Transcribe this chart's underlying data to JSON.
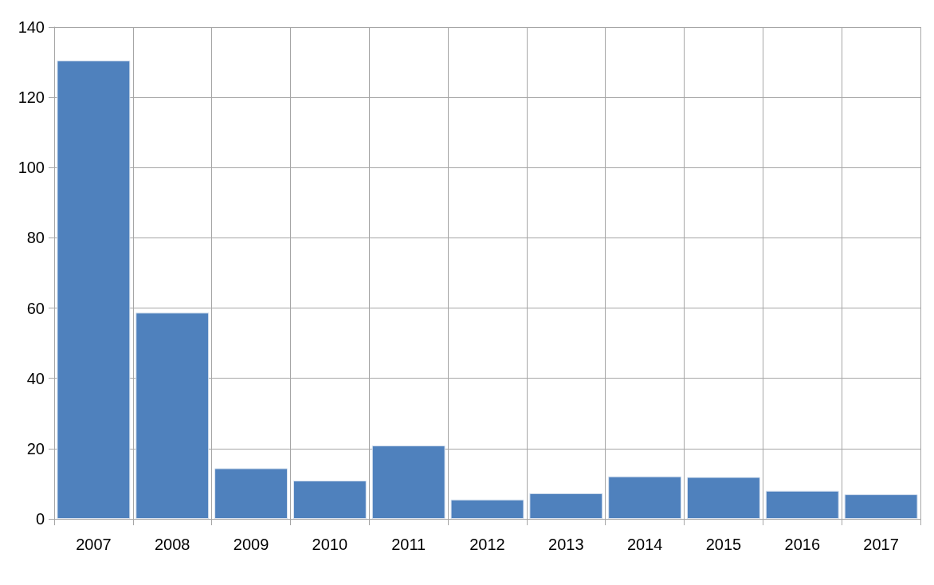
{
  "chart_data": {
    "type": "bar",
    "categories": [
      "2007",
      "2008",
      "2009",
      "2010",
      "2011",
      "2012",
      "2013",
      "2014",
      "2015",
      "2016",
      "2017"
    ],
    "values": [
      130.5,
      58.7,
      14.4,
      10.9,
      20.9,
      5.5,
      7.3,
      12.1,
      11.9,
      8.0,
      7.0
    ],
    "color": "#4f81bd",
    "ylim": [
      0,
      140
    ],
    "yticks": [
      0,
      20,
      40,
      60,
      80,
      100,
      120,
      140
    ],
    "grid": true
  }
}
